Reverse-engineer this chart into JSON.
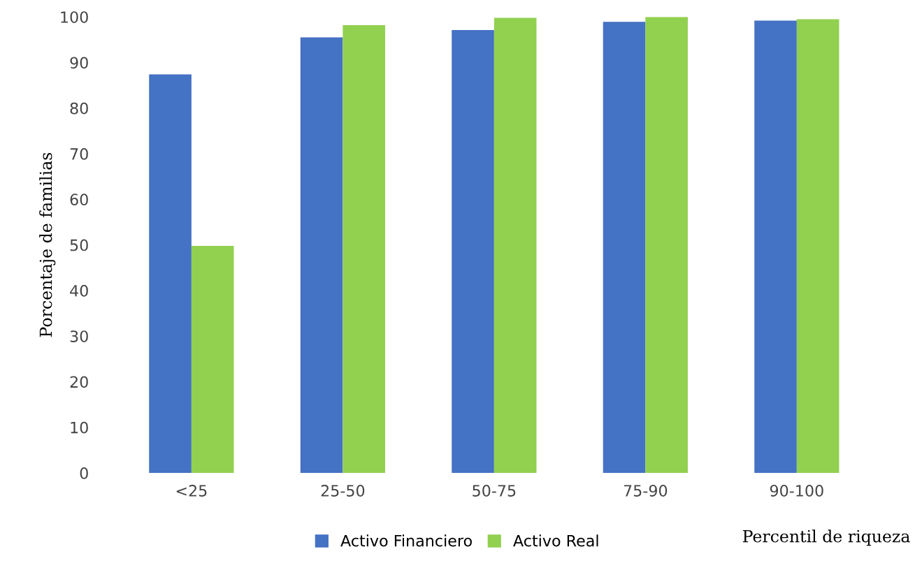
{
  "chart_data": {
    "type": "bar",
    "xlabel": "Percentil de riqueza",
    "ylabel": "Porcentaje de familias",
    "categories": [
      "<25",
      "25-50",
      "50-75",
      "75-90",
      "90-100"
    ],
    "series": [
      {
        "name": "Activo Financiero",
        "color": "#4472c4",
        "values": [
          87.4,
          95.5,
          97.1,
          98.9,
          99.2
        ]
      },
      {
        "name": "Activo Real",
        "color": "#92d050",
        "values": [
          49.8,
          98.2,
          99.8,
          100,
          99.5
        ]
      }
    ],
    "ylim": [
      0,
      100
    ],
    "yticks": [
      0,
      10,
      20,
      30,
      40,
      50,
      60,
      70,
      80,
      90,
      100
    ],
    "grid": false,
    "legend": "bottom"
  }
}
